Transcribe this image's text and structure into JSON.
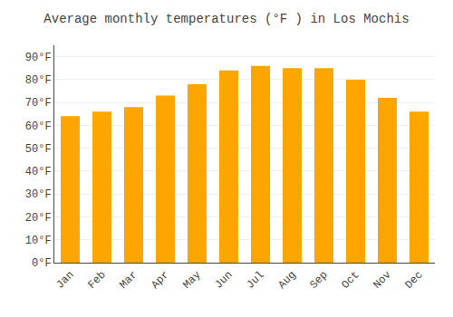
{
  "chart_data": {
    "type": "bar",
    "title": "Average monthly temperatures (°F ) in Los Mochis",
    "categories": [
      "Jan",
      "Feb",
      "Mar",
      "Apr",
      "May",
      "Jun",
      "Jul",
      "Aug",
      "Sep",
      "Oct",
      "Nov",
      "Dec"
    ],
    "values": [
      64,
      66,
      68,
      73,
      78,
      84,
      86,
      85,
      85,
      80,
      72,
      66
    ],
    "color": "#FFA500",
    "ylim": [
      0,
      95
    ],
    "yticks": [
      {
        "value": 0,
        "label": "0°F"
      },
      {
        "value": 10,
        "label": "10°F"
      },
      {
        "value": 20,
        "label": "20°F"
      },
      {
        "value": 30,
        "label": "30°F"
      },
      {
        "value": 40,
        "label": "40°F"
      },
      {
        "value": 50,
        "label": "50°F"
      },
      {
        "value": 60,
        "label": "60°F"
      },
      {
        "value": 70,
        "label": "70°F"
      },
      {
        "value": 80,
        "label": "80°F"
      },
      {
        "value": 90,
        "label": "90°F"
      }
    ],
    "grid": true
  }
}
